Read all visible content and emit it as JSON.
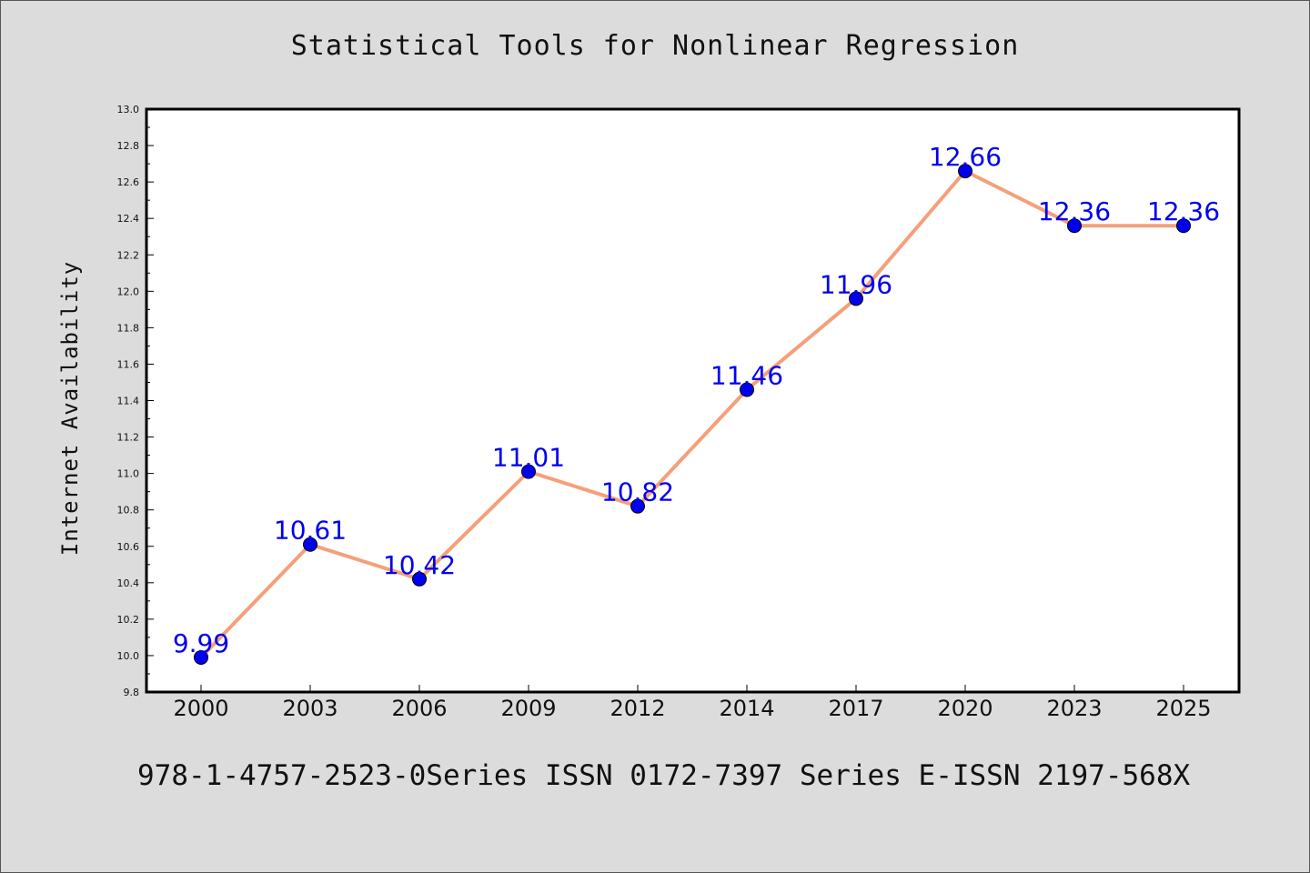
{
  "chart_data": {
    "type": "line",
    "title": "Statistical Tools for Nonlinear Regression",
    "xlabel": "",
    "ylabel": "Internet Availability",
    "categories": [
      "2000",
      "2003",
      "2006",
      "2009",
      "2012",
      "2014",
      "2017",
      "2020",
      "2023",
      "2025"
    ],
    "series": [
      {
        "values": [
          9.99,
          10.61,
          10.42,
          11.01,
          10.82,
          11.46,
          11.96,
          12.66,
          12.36,
          12.36
        ],
        "labels": [
          "9.99",
          "10.61",
          "10.42",
          "11.01",
          "10.82",
          "11.46",
          "11.96",
          "12.66",
          "12.36",
          "12.36"
        ],
        "line_color": "#f4a07a",
        "marker_color": "#0000ee",
        "label_color": "#0000ee"
      }
    ],
    "ylim": [
      9.8,
      13.0
    ],
    "yticks": [
      "9.8",
      "10.0",
      "10.2",
      "10.4",
      "10.6",
      "10.8",
      "11.0",
      "11.2",
      "11.4",
      "11.6",
      "11.8",
      "12.0",
      "12.2",
      "12.4",
      "12.6",
      "12.8",
      "13.0"
    ],
    "grid": false,
    "legend": "none"
  },
  "footer": "978-1-4757-2523-0Series ISSN 0172-7397 Series E-ISSN 2197-568X",
  "colors": {
    "background": "#dcdcdc",
    "plot_background": "#ffffff",
    "axis": "#000000"
  }
}
